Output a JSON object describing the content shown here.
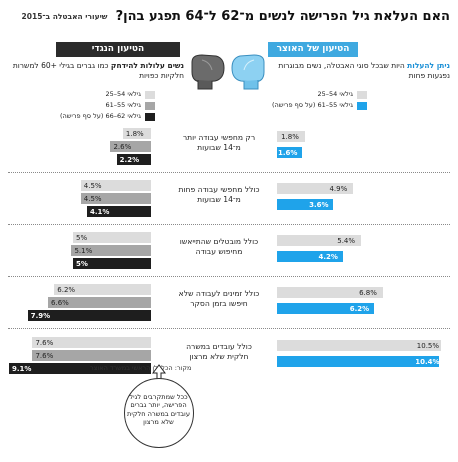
{
  "title": "האם העלאת גיל הפרישה לנשים מ־62 ל־64 תפגע בהן?",
  "subtitle": "שיעורי האבטלה ב־2015",
  "left_header": "הטיעון הנגדי",
  "right_header": "הטיעון של האוצר",
  "left_desc": {
    "bold": "נשים עלולות להידחק",
    "text": "כמו גברים בגילי +60 למשרות חלקיות כפויות"
  },
  "right_desc": {
    "highlight": "ניתן להעלות",
    "text": "היות שבכל סוגי האבטלה, נשים מבוגרות נפגעות פחות"
  },
  "colors": {
    "light": "#dcdcdc",
    "medium": "#a6a6a6",
    "dark": "#1e1e1e",
    "blue": "#1fa3ea",
    "header_blue": "#3fa9e0",
    "header_dark": "#2b2b2b"
  },
  "left_legend": [
    "גילאי 54–25",
    "גילאי 55–61",
    "גילאי 62–66 (על סף פרישה)"
  ],
  "right_legend": [
    "גילאי 54–25",
    "גילאי 55–61 (על סף פרישה)"
  ],
  "source": "מקור: הכלכלן הראשי במשרד האוצר",
  "callout": "ככל שמתקרבים לגיל הפרישה, יותר גברים עובדים במשרה חלקית שלא מרצון",
  "icons": [
    "boxing-glove-dark-icon",
    "boxing-glove-blue-icon",
    "arrow-up-icon"
  ],
  "chart_data": {
    "type": "bar",
    "categories": [
      "רק מחפשי עבודה יותר מ־14 שבועות",
      "כולל מחפשי עבודה פחות מ־14 שבועות",
      "כולל מובטלים שהתייאשו מחיפוש עבודה",
      "כולל זמינים לעבודה שלא חיפשו בזמן הסקר",
      "כולל עובדים במשרה חלקית שלא מרצון"
    ],
    "unit": "%",
    "left_series": [
      {
        "name": "גילאי 54–25",
        "values": [
          1.8,
          4.5,
          5,
          6.2,
          7.6
        ]
      },
      {
        "name": "גילאי 55–61",
        "values": [
          2.6,
          4.5,
          5.1,
          6.6,
          7.6
        ]
      },
      {
        "name": "גילאי 62–66 (על סף פרישה)",
        "values": [
          2.2,
          4.1,
          5,
          7.9,
          9.1
        ]
      }
    ],
    "right_series": [
      {
        "name": "גילאי 54–25",
        "values": [
          1.8,
          4.9,
          5.4,
          6.8,
          10.5
        ]
      },
      {
        "name": "גילאי 55–61 (על סף פרישה)",
        "values": [
          1.6,
          3.6,
          4.2,
          6.2,
          10.4
        ]
      }
    ],
    "labels": {
      "left": [
        [
          "1.8%",
          "2.6%",
          "2.2%"
        ],
        [
          "4.5%",
          "4.5%",
          "4.1%"
        ],
        [
          "5%",
          "5.1%",
          "5%"
        ],
        [
          "6.2%",
          "6.6%",
          "7.9%"
        ],
        [
          "7.6%",
          "7.6%",
          "9.1%"
        ]
      ],
      "right": [
        [
          "1.8%",
          "1.6%"
        ],
        [
          "4.9%",
          "3.6%"
        ],
        [
          "5.4%",
          "4.2%"
        ],
        [
          "6.8%",
          "6.2%"
        ],
        [
          "10.5%",
          "10.4%"
        ]
      ]
    }
  }
}
